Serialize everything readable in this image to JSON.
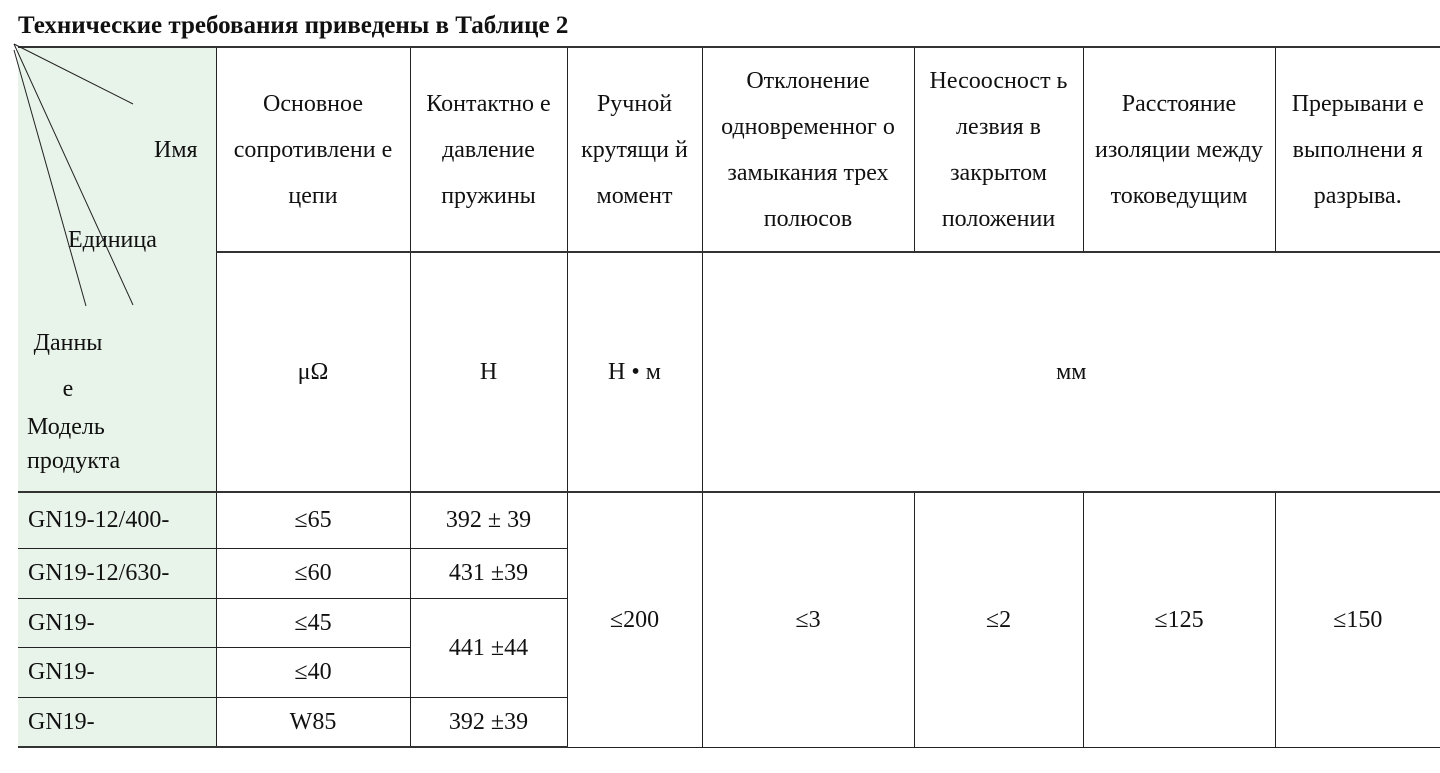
{
  "title": "Технические требования приведены в Таблице 2",
  "corner": {
    "name": "Имя",
    "unit": "Единица",
    "data": "Данны\nе",
    "model": "Модель\nпродукта"
  },
  "headers": [
    "Основное сопротивлени е цепи",
    "Контактно е давление пружины",
    "Ручной крутящи й момент",
    "Отклонение одновременног о замыкания трех полюсов",
    "Несоосност ь лезвия в закрытом положении",
    "Расстояние изоляции между токоведущим",
    "Прерывани е выполнени я разрыва."
  ],
  "units": {
    "resistance": "μΩ",
    "pressure": "Н",
    "torque": "Н • м",
    "mm": "мм"
  },
  "rows": [
    {
      "model": "GN19-12/400-",
      "resistance": "≤65",
      "pressure": "392 ± 39"
    },
    {
      "model": "GN19-12/630-",
      "resistance": "≤60",
      "pressure": "431 ±39"
    },
    {
      "model": "GN19-",
      "resistance": "≤45"
    },
    {
      "model": "GN19-",
      "resistance": "≤40"
    },
    {
      "model": "GN19-",
      "resistance": "W85",
      "pressure": "392 ±39"
    }
  ],
  "merged": {
    "pressure_34": "441 ±44",
    "torque": "≤200",
    "deviation": "≤3",
    "misalignment": "≤2",
    "insulation": "≤125",
    "breaking": "≤150"
  }
}
